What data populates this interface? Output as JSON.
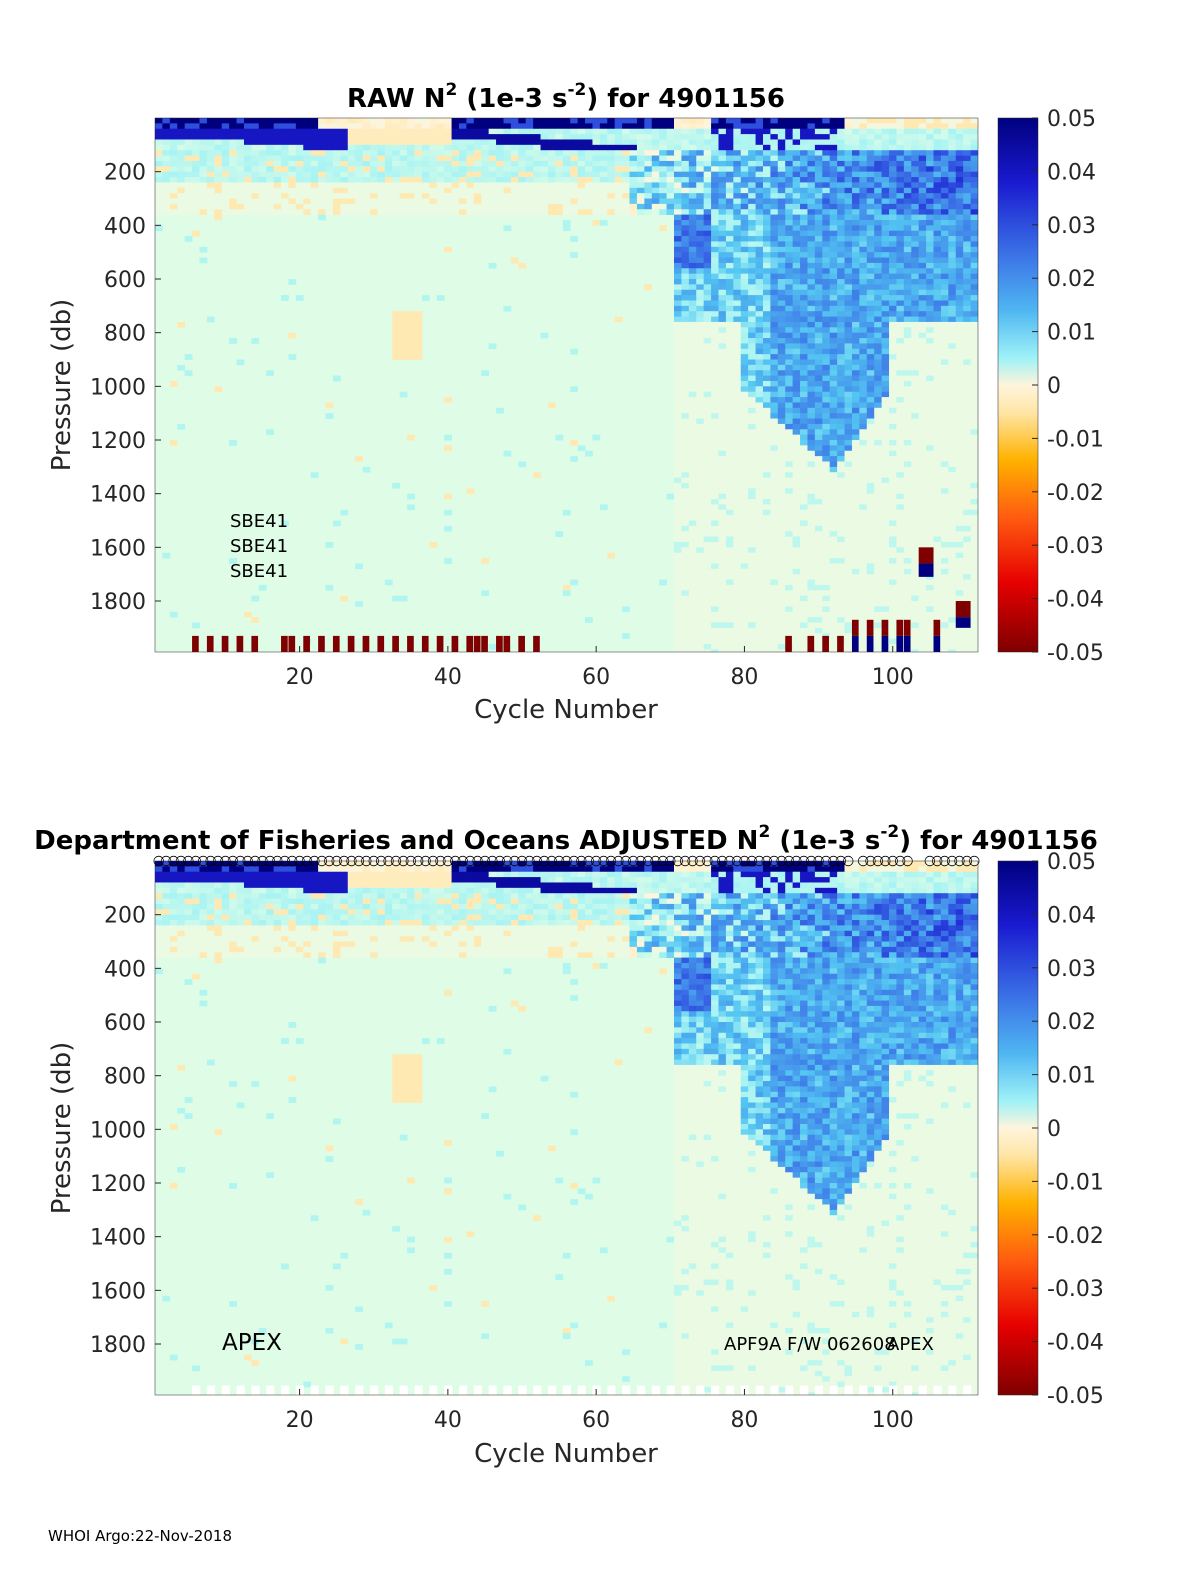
{
  "chart_data": [
    {
      "type": "heatmap",
      "title_pre": "RAW N",
      "title_sup": "2",
      "title_mid": " (1e-3 s",
      "title_sup2": "-2",
      "title_post": ") for 4901156",
      "xlabel": "Cycle Number",
      "ylabel": "Pressure (db)",
      "xlim": [
        1,
        111
      ],
      "ylim": [
        0,
        1990
      ],
      "x_ticks": [
        20,
        40,
        60,
        80,
        100
      ],
      "y_ticks": [
        200,
        400,
        600,
        800,
        1000,
        1200,
        1400,
        1600,
        1800
      ],
      "colorbar": {
        "min": -0.05,
        "max": 0.05,
        "ticks": [
          0.05,
          0.04,
          0.03,
          0.02,
          0.01,
          0,
          -0.01,
          -0.02,
          -0.03,
          -0.04,
          -0.05
        ],
        "tick_labels": [
          "0.05",
          "0.04",
          "0.03",
          "0.02",
          "0.01",
          "0",
          "-0.01",
          "-0.02",
          "-0.03",
          "-0.04",
          "-0.05"
        ]
      },
      "annotations": [
        "SBE41",
        "SBE41",
        "SBE41"
      ],
      "bottom_flag_cycles_negative": [
        6,
        8,
        10,
        12,
        14,
        18,
        19,
        21,
        23,
        25,
        27,
        29,
        31,
        33,
        35,
        37,
        39,
        41,
        43,
        44,
        45,
        47,
        48,
        50,
        52,
        86,
        89,
        91,
        93
      ],
      "bottom_flag_cycles_positive": [
        95,
        97,
        99,
        101,
        102,
        106
      ],
      "outlier_cells": [
        {
          "cycle": 104,
          "p_from": 1600,
          "p_to": 1660,
          "value": -0.05
        },
        {
          "cycle": 104,
          "p_from": 1660,
          "p_to": 1710,
          "value": 0.05
        },
        {
          "cycle": 109,
          "p_from": 1800,
          "p_to": 1860,
          "value": -0.05
        },
        {
          "cycle": 109,
          "p_from": 1860,
          "p_to": 1900,
          "value": 0.05
        }
      ]
    },
    {
      "type": "heatmap",
      "title_pre": "Department of Fisheries and Oceans  ADJUSTED N",
      "title_sup": "2",
      "title_mid": " (1e-3 s",
      "title_sup2": "-2",
      "title_post": ") for 4901156",
      "xlabel": "Cycle Number",
      "ylabel": "Pressure (db)",
      "xlim": [
        1,
        111
      ],
      "ylim": [
        0,
        1990
      ],
      "x_ticks": [
        20,
        40,
        60,
        80,
        100
      ],
      "y_ticks": [
        200,
        400,
        600,
        800,
        1000,
        1200,
        1400,
        1600,
        1800
      ],
      "colorbar": {
        "min": -0.05,
        "max": 0.05,
        "ticks": [
          0.05,
          0.04,
          0.03,
          0.02,
          0.01,
          0,
          -0.01,
          -0.02,
          -0.03,
          -0.04,
          -0.05
        ],
        "tick_labels": [
          "0.05",
          "0.04",
          "0.03",
          "0.02",
          "0.01",
          "0",
          "-0.01",
          "-0.02",
          "-0.03",
          "-0.04",
          "-0.05"
        ]
      },
      "annotations": [
        "APEX",
        "APF9A F/W 062608",
        "APEX"
      ],
      "top_marker": "o"
    }
  ],
  "footer": "WHOI Argo:22-Nov-2018"
}
